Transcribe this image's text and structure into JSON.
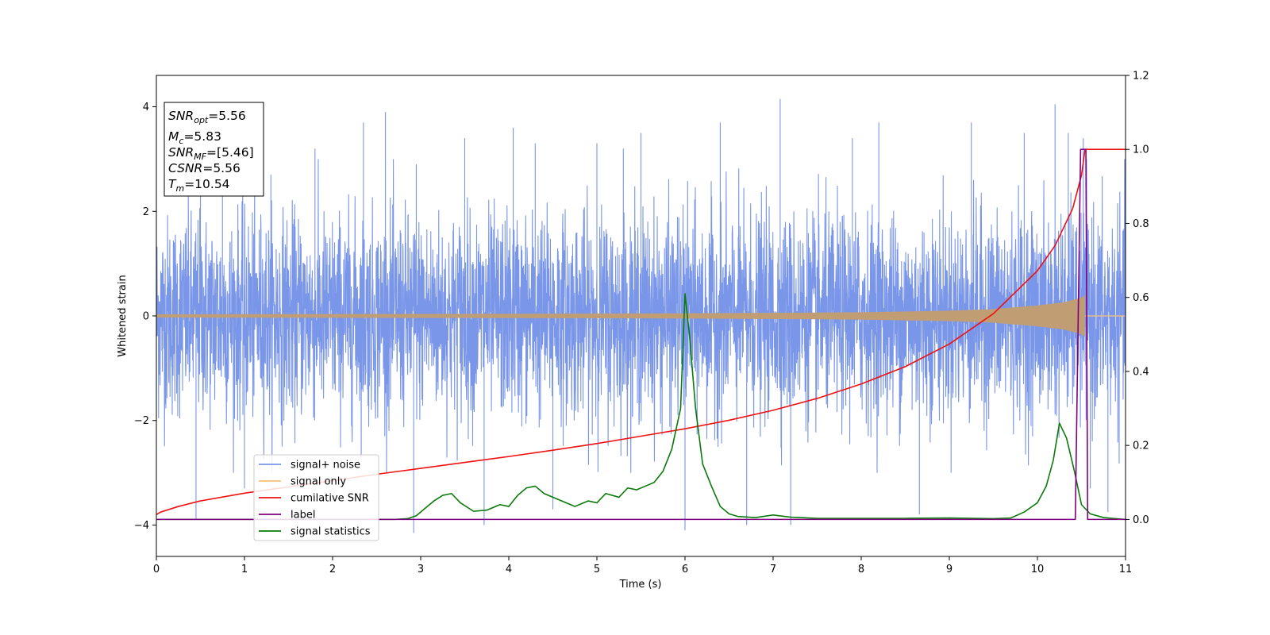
{
  "chart_data": {
    "type": "line",
    "xlabel": "Time (s)",
    "ylabel": "Whitened strain",
    "xlim": [
      0,
      11
    ],
    "ylim_left": [
      -4.6,
      4.6
    ],
    "ylim_right": [
      -0.1,
      1.2
    ],
    "x_ticks": [
      0,
      1,
      2,
      3,
      4,
      5,
      6,
      7,
      8,
      9,
      10,
      11
    ],
    "y_ticks_left": [
      -4,
      -2,
      0,
      2,
      4
    ],
    "y_ticks_right": [
      0.0,
      0.2,
      0.4,
      0.6,
      0.8,
      1.0,
      1.2
    ],
    "legend_location": "lower-left",
    "annotation_box": {
      "lines": [
        {
          "sym": "SNR",
          "sub": "opt",
          "value": "=5.56"
        },
        {
          "sym": "M",
          "sub": "c",
          "value": "=5.83"
        },
        {
          "sym": "SNR",
          "sub": "MF",
          "value": "=[5.46]"
        },
        {
          "sym": "CSNR",
          "sub": "",
          "value": "=5.56"
        },
        {
          "sym": "T",
          "sub": "m",
          "value": "=10.54"
        }
      ]
    },
    "series": [
      {
        "name": "signal+ noise",
        "axis": "left",
        "color": "#7a96e8",
        "description_values": {
          "envelope_typical": 1.9,
          "max": 4.15,
          "min": -4.15
        },
        "spikes": [
          [
            0.45,
            -3.9
          ],
          [
            0.5,
            2.6
          ],
          [
            0.75,
            2.9
          ],
          [
            1.0,
            -3.3
          ],
          [
            1.3,
            2.7
          ],
          [
            1.8,
            3.2
          ],
          [
            2.35,
            3.7
          ],
          [
            2.6,
            3.9
          ],
          [
            2.92,
            -4.15
          ],
          [
            2.95,
            2.9
          ],
          [
            3.5,
            3.4
          ],
          [
            3.72,
            -4.0
          ],
          [
            4.05,
            3.6
          ],
          [
            4.3,
            3.3
          ],
          [
            4.5,
            -3.7
          ],
          [
            5.0,
            3.3
          ],
          [
            5.3,
            3.2
          ],
          [
            5.5,
            3.5
          ],
          [
            6.0,
            -4.1
          ],
          [
            6.4,
            3.7
          ],
          [
            6.7,
            -4.0
          ],
          [
            7.08,
            4.15
          ],
          [
            7.2,
            -4.0
          ],
          [
            7.9,
            3.4
          ],
          [
            8.2,
            3.7
          ],
          [
            8.66,
            -3.8
          ],
          [
            9.25,
            3.7
          ],
          [
            9.85,
            3.5
          ],
          [
            10.2,
            4.05
          ],
          [
            10.35,
            3.5
          ],
          [
            10.52,
            3.4
          ],
          [
            10.6,
            -3.3
          ],
          [
            10.8,
            -3.75
          ]
        ]
      },
      {
        "name": "signal only",
        "axis": "left",
        "color": "#f5c37a",
        "fill_color": "#c19d74",
        "amplitude_points": [
          [
            0,
            0.03
          ],
          [
            2,
            0.035
          ],
          [
            4,
            0.04
          ],
          [
            6,
            0.05
          ],
          [
            8,
            0.07
          ],
          [
            9,
            0.1
          ],
          [
            9.5,
            0.13
          ],
          [
            10,
            0.2
          ],
          [
            10.3,
            0.26
          ],
          [
            10.5,
            0.35
          ],
          [
            10.54,
            0.4
          ]
        ]
      },
      {
        "name": "cumilative SNR",
        "axis": "right",
        "color": "#ee1111",
        "points": [
          [
            0,
            0.013
          ],
          [
            0.05,
            0.02
          ],
          [
            0.25,
            0.035
          ],
          [
            0.5,
            0.05
          ],
          [
            1,
            0.071
          ],
          [
            1.5,
            0.088
          ],
          [
            2,
            0.105
          ],
          [
            2.5,
            0.122
          ],
          [
            3,
            0.138
          ],
          [
            3.5,
            0.154
          ],
          [
            4,
            0.17
          ],
          [
            4.5,
            0.187
          ],
          [
            5,
            0.205
          ],
          [
            5.5,
            0.225
          ],
          [
            6,
            0.245
          ],
          [
            6.5,
            0.268
          ],
          [
            7,
            0.295
          ],
          [
            7.5,
            0.327
          ],
          [
            8,
            0.366
          ],
          [
            8.5,
            0.413
          ],
          [
            9,
            0.474
          ],
          [
            9.5,
            0.556
          ],
          [
            10,
            0.672
          ],
          [
            10.2,
            0.74
          ],
          [
            10.4,
            0.84
          ],
          [
            10.5,
            0.93
          ],
          [
            10.54,
            1.0
          ],
          [
            11,
            1.0
          ]
        ]
      },
      {
        "name": "label",
        "axis": "right",
        "color": "#800080",
        "points": [
          [
            0,
            0.0
          ],
          [
            10.43,
            0.0
          ],
          [
            10.49,
            1.0
          ],
          [
            10.55,
            1.0
          ],
          [
            10.57,
            0.0
          ],
          [
            11,
            0.0
          ]
        ]
      },
      {
        "name": "signal statistics",
        "axis": "right",
        "color": "#0a7a0a",
        "points": [
          [
            0,
            0.0
          ],
          [
            1,
            0.0
          ],
          [
            2,
            0.0
          ],
          [
            2.7,
            0.0
          ],
          [
            2.85,
            0.002
          ],
          [
            2.95,
            0.01
          ],
          [
            3.05,
            0.03
          ],
          [
            3.15,
            0.05
          ],
          [
            3.25,
            0.065
          ],
          [
            3.35,
            0.07
          ],
          [
            3.45,
            0.045
          ],
          [
            3.6,
            0.022
          ],
          [
            3.75,
            0.025
          ],
          [
            3.9,
            0.04
          ],
          [
            4.0,
            0.035
          ],
          [
            4.1,
            0.065
          ],
          [
            4.2,
            0.085
          ],
          [
            4.3,
            0.09
          ],
          [
            4.4,
            0.07
          ],
          [
            4.55,
            0.055
          ],
          [
            4.65,
            0.045
          ],
          [
            4.75,
            0.035
          ],
          [
            4.9,
            0.05
          ],
          [
            5.0,
            0.045
          ],
          [
            5.1,
            0.07
          ],
          [
            5.25,
            0.06
          ],
          [
            5.35,
            0.085
          ],
          [
            5.45,
            0.08
          ],
          [
            5.55,
            0.09
          ],
          [
            5.65,
            0.1
          ],
          [
            5.75,
            0.13
          ],
          [
            5.85,
            0.19
          ],
          [
            5.95,
            0.3
          ],
          [
            6.0,
            0.61
          ],
          [
            6.05,
            0.5
          ],
          [
            6.12,
            0.3
          ],
          [
            6.2,
            0.15
          ],
          [
            6.3,
            0.09
          ],
          [
            6.4,
            0.035
          ],
          [
            6.5,
            0.015
          ],
          [
            6.6,
            0.008
          ],
          [
            6.8,
            0.005
          ],
          [
            7.0,
            0.012
          ],
          [
            7.2,
            0.006
          ],
          [
            7.5,
            0.003
          ],
          [
            8.0,
            0.003
          ],
          [
            8.5,
            0.003
          ],
          [
            9.0,
            0.004
          ],
          [
            9.5,
            0.002
          ],
          [
            9.7,
            0.004
          ],
          [
            9.85,
            0.02
          ],
          [
            10.0,
            0.045
          ],
          [
            10.1,
            0.09
          ],
          [
            10.18,
            0.16
          ],
          [
            10.25,
            0.26
          ],
          [
            10.33,
            0.22
          ],
          [
            10.42,
            0.13
          ],
          [
            10.5,
            0.04
          ],
          [
            10.6,
            0.015
          ],
          [
            10.75,
            0.005
          ],
          [
            11.0,
            0.0
          ]
        ]
      }
    ]
  }
}
